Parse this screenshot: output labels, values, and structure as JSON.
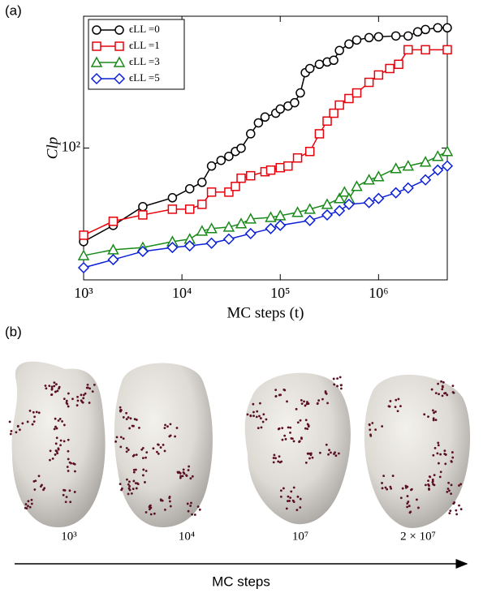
{
  "panels": {
    "a": "(a)",
    "b": "(b)"
  },
  "chart_data": {
    "type": "line",
    "xlabel": "MC steps (t)",
    "ylabel": "Clp",
    "xscale": "log",
    "yscale": "log",
    "xlim": [
      1000,
      5000000
    ],
    "ylim": [
      20,
      500
    ],
    "xticks": [
      {
        "value": 1000,
        "label": "10³"
      },
      {
        "value": 10000,
        "label": "10⁴"
      },
      {
        "value": 100000,
        "label": "10⁵"
      },
      {
        "value": 1000000,
        "label": "10⁶"
      }
    ],
    "yticks": [
      {
        "value": 100,
        "label": "10²"
      }
    ],
    "legend": "upper left",
    "series": [
      {
        "name": "ϵLL =0",
        "color": "#000000",
        "marker": "circle",
        "x": [
          1000,
          2000,
          4000,
          8000,
          12000,
          16000,
          20000,
          25000,
          30000,
          35000,
          40000,
          50000,
          60000,
          70000,
          90000,
          100000,
          120000,
          140000,
          160000,
          180000,
          200000,
          250000,
          300000,
          350000,
          400000,
          500000,
          600000,
          800000,
          1000000,
          1500000,
          2000000,
          2500000,
          3000000,
          4000000,
          5000000
        ],
        "values": [
          31.9,
          38.9,
          48.9,
          54.5,
          60.8,
          65.8,
          80.3,
          86.0,
          90.4,
          95.9,
          99.8,
          119,
          136,
          146,
          153,
          161,
          167,
          174,
          196,
          251,
          264,
          278,
          286,
          292,
          329,
          356,
          374,
          385,
          389,
          393,
          393,
          413,
          425,
          434,
          434
        ]
      },
      {
        "name": "ϵLL =1",
        "color": "#e8000b",
        "marker": "square",
        "x": [
          1000,
          2000,
          4000,
          8000,
          12000,
          16000,
          20000,
          30000,
          35000,
          40000,
          50000,
          70000,
          80000,
          100000,
          120000,
          150000,
          200000,
          250000,
          300000,
          350000,
          400000,
          500000,
          600000,
          800000,
          1000000,
          1300000,
          1600000,
          2000000,
          3000000,
          5000000
        ],
        "values": [
          34.5,
          40.9,
          44.2,
          47.4,
          47.4,
          50.3,
          58.4,
          58.4,
          62.6,
          69.2,
          71.3,
          74.9,
          76.4,
          78.7,
          80.3,
          88.6,
          95.9,
          119,
          139,
          153,
          169,
          183,
          196,
          223,
          244,
          264,
          278,
          332,
          332,
          332
        ]
      },
      {
        "name": "ϵLL =3",
        "color": "#1a8a1a",
        "marker": "triangle",
        "x": [
          1000,
          2000,
          4000,
          8000,
          12000,
          16000,
          20000,
          30000,
          40000,
          50000,
          80000,
          100000,
          150000,
          200000,
          300000,
          400000,
          450000,
          500000,
          600000,
          800000,
          1000000,
          1500000,
          2000000,
          3000000,
          4000000,
          5000000
        ],
        "values": [
          26.9,
          28.9,
          29.7,
          31.9,
          32.9,
          36.3,
          37.4,
          38.1,
          39.7,
          42.1,
          42.9,
          43.8,
          45.6,
          47.4,
          50.3,
          54.0,
          58.4,
          54.0,
          62.6,
          67.8,
          70.5,
          77.9,
          80.3,
          84.3,
          90.4,
          95.9
        ]
      },
      {
        "name": "ϵLL =5",
        "color": "#0a1fd6",
        "marker": "diamond",
        "x": [
          1000,
          2000,
          4000,
          8000,
          12000,
          20000,
          30000,
          50000,
          80000,
          100000,
          200000,
          300000,
          400000,
          500000,
          800000,
          1000000,
          1500000,
          2000000,
          3000000,
          4000000,
          5000000
        ],
        "values": [
          23.2,
          25.6,
          28.3,
          29.7,
          30.3,
          31.3,
          32.9,
          35.2,
          37.4,
          38.9,
          41.3,
          44.2,
          46.5,
          50.3,
          51.4,
          54.0,
          57.9,
          61.4,
          67.8,
          76.4,
          80.3
        ]
      }
    ]
  },
  "snapshots": {
    "labels": [
      "10³",
      "10⁴",
      "10⁷",
      "2 × 10⁷"
    ],
    "axis_label": "MC steps"
  }
}
